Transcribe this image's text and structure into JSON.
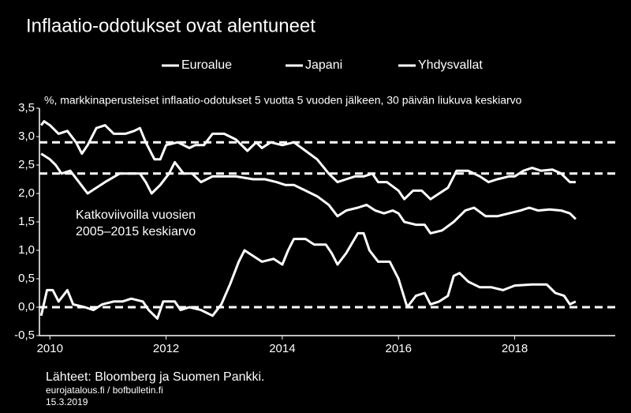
{
  "chart_data": {
    "type": "line",
    "title": "Inflaatio-odotukset ovat alentuneet",
    "subtitle": "%, markkinaperusteiset inflaatio-odotukset 5 vuotta 5 vuoden jälkeen, 30 päivän liukuva keskiarvo",
    "annotation": [
      "Katkoviivoilla vuosien",
      "2005–2015 keskiarvo"
    ],
    "source": "Lähteet: Bloomberg ja Suomen Pankki.",
    "site": "eurojatalous.fi / bofbulletin.fi",
    "date": "15.3.2019",
    "xlim": [
      2009.82,
      2019.73
    ],
    "xticks": [
      2010,
      2012,
      2014,
      2016,
      2018
    ],
    "ylim": [
      -0.5,
      3.5
    ],
    "yticks": [
      {
        "value": 3.5,
        "label": "3,5"
      },
      {
        "value": 3.0,
        "label": "3,0"
      },
      {
        "value": 2.5,
        "label": "2,5"
      },
      {
        "value": 2.0,
        "label": "2,0"
      },
      {
        "value": 1.5,
        "label": "1,5"
      },
      {
        "value": 1.0,
        "label": "1,0"
      },
      {
        "value": 0.5,
        "label": "0,5"
      },
      {
        "value": 0.0,
        "label": "0,0"
      },
      {
        "value": -0.5,
        "label": "-0,5"
      }
    ],
    "reference_lines": [
      2.9,
      2.35,
      0
    ],
    "series": [
      {
        "name": "Euroalue",
        "color": "#ffffff",
        "x": [
          2009.85,
          2010.0,
          2010.1,
          2010.2,
          2010.35,
          2010.5,
          2010.65,
          2010.8,
          2010.95,
          2011.2,
          2011.4,
          2011.55,
          2011.65,
          2011.75,
          2011.9,
          2012.05,
          2012.15,
          2012.3,
          2012.45,
          2012.6,
          2012.8,
          2013.0,
          2013.2,
          2013.5,
          2013.7,
          2013.9,
          2014.05,
          2014.2,
          2014.4,
          2014.6,
          2014.8,
          2014.95,
          2015.1,
          2015.3,
          2015.45,
          2015.6,
          2015.75,
          2015.9,
          2016.0,
          2016.1,
          2016.3,
          2016.45,
          2016.55,
          2016.75,
          2016.95,
          2017.15,
          2017.3,
          2017.5,
          2017.7,
          2017.9,
          2018.1,
          2018.25,
          2018.4,
          2018.6,
          2018.8,
          2018.95,
          2019.05
        ],
        "values": [
          2.7,
          2.6,
          2.5,
          2.35,
          2.4,
          2.2,
          2.0,
          2.1,
          2.2,
          2.35,
          2.35,
          2.35,
          2.2,
          2.0,
          2.15,
          2.35,
          2.55,
          2.35,
          2.35,
          2.2,
          2.3,
          2.3,
          2.3,
          2.25,
          2.25,
          2.2,
          2.15,
          2.15,
          2.05,
          1.95,
          1.8,
          1.6,
          1.7,
          1.75,
          1.8,
          1.7,
          1.65,
          1.7,
          1.65,
          1.5,
          1.45,
          1.45,
          1.3,
          1.35,
          1.5,
          1.7,
          1.75,
          1.6,
          1.6,
          1.65,
          1.7,
          1.75,
          1.7,
          1.72,
          1.7,
          1.65,
          1.55
        ]
      },
      {
        "name": "Japani",
        "color": "#ffffff",
        "x": [
          2009.85,
          2009.95,
          2010.05,
          2010.15,
          2010.3,
          2010.4,
          2010.6,
          2010.75,
          2010.9,
          2011.1,
          2011.25,
          2011.4,
          2011.6,
          2011.7,
          2011.85,
          2011.95,
          2012.15,
          2012.25,
          2012.4,
          2012.6,
          2012.8,
          2012.95,
          2013.1,
          2013.25,
          2013.35,
          2013.5,
          2013.65,
          2013.85,
          2014.0,
          2014.1,
          2014.2,
          2014.4,
          2014.55,
          2014.75,
          2014.85,
          2014.95,
          2015.1,
          2015.3,
          2015.4,
          2015.5,
          2015.65,
          2015.85,
          2016.0,
          2016.15,
          2016.3,
          2016.45,
          2016.55,
          2016.7,
          2016.85,
          2016.95,
          2017.05,
          2017.2,
          2017.4,
          2017.6,
          2017.8,
          2018.0,
          2018.3,
          2018.55,
          2018.7,
          2018.85,
          2018.95,
          2019.05
        ],
        "values": [
          -0.15,
          0.3,
          0.3,
          0.1,
          0.3,
          0.05,
          0.0,
          -0.05,
          0.05,
          0.1,
          0.1,
          0.15,
          0.1,
          -0.05,
          -0.2,
          0.1,
          0.1,
          -0.05,
          0.0,
          -0.05,
          -0.15,
          0.05,
          0.4,
          0.8,
          1.0,
          0.9,
          0.8,
          0.85,
          0.75,
          1.0,
          1.2,
          1.2,
          1.1,
          1.1,
          0.95,
          0.75,
          0.95,
          1.3,
          1.3,
          1.0,
          0.8,
          0.8,
          0.5,
          0.0,
          0.2,
          0.25,
          0.05,
          0.1,
          0.2,
          0.55,
          0.6,
          0.45,
          0.35,
          0.35,
          0.3,
          0.38,
          0.4,
          0.4,
          0.25,
          0.2,
          0.05,
          0.1
        ]
      },
      {
        "name": "Yhdysvallat",
        "color": "#ffffff",
        "x": [
          2009.85,
          2009.9,
          2010.0,
          2010.15,
          2010.3,
          2010.45,
          2010.55,
          2010.65,
          2010.8,
          2010.95,
          2011.1,
          2011.3,
          2011.45,
          2011.55,
          2011.65,
          2011.8,
          2011.9,
          2012.0,
          2012.2,
          2012.4,
          2012.5,
          2012.65,
          2012.8,
          2013.0,
          2013.2,
          2013.4,
          2013.55,
          2013.65,
          2013.8,
          2014.0,
          2014.2,
          2014.4,
          2014.6,
          2014.8,
          2014.95,
          2015.1,
          2015.25,
          2015.4,
          2015.55,
          2015.65,
          2015.8,
          2016.0,
          2016.1,
          2016.25,
          2016.4,
          2016.55,
          2016.7,
          2016.85,
          2017.0,
          2017.2,
          2017.4,
          2017.55,
          2017.7,
          2017.9,
          2018.0,
          2018.15,
          2018.3,
          2018.45,
          2018.65,
          2018.8,
          2018.95,
          2019.05
        ],
        "values": [
          3.2,
          3.27,
          3.2,
          3.05,
          3.1,
          2.9,
          2.7,
          2.85,
          3.15,
          3.2,
          3.05,
          3.05,
          3.1,
          3.15,
          2.9,
          2.6,
          2.6,
          2.85,
          2.9,
          2.8,
          2.85,
          2.85,
          3.05,
          3.05,
          2.95,
          2.75,
          2.9,
          2.8,
          2.9,
          2.85,
          2.9,
          2.75,
          2.6,
          2.35,
          2.2,
          2.25,
          2.3,
          2.3,
          2.35,
          2.2,
          2.2,
          2.05,
          1.9,
          2.05,
          2.05,
          1.9,
          2.0,
          2.1,
          2.4,
          2.4,
          2.3,
          2.2,
          2.25,
          2.3,
          2.3,
          2.4,
          2.45,
          2.4,
          2.42,
          2.35,
          2.2,
          2.2
        ]
      }
    ]
  }
}
